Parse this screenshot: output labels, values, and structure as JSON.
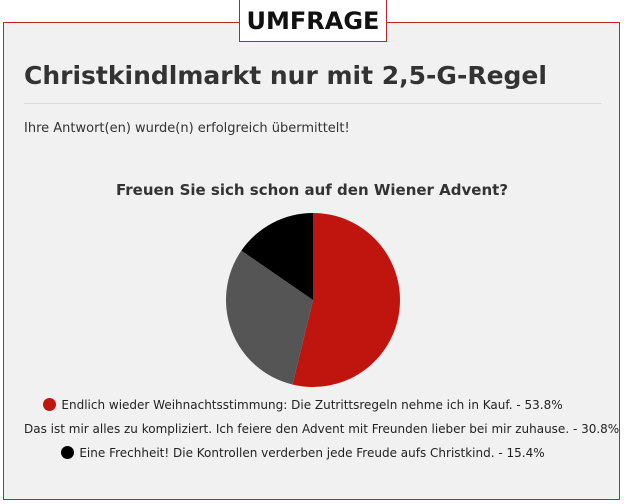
{
  "badge": {
    "label": "UMFRAGE"
  },
  "poll": {
    "title": "Christkindlmarkt nur mit 2,5-G-Regel",
    "confirmation": "Ihre Antwort(en) wurde(n) erfolgreich übermittelt!",
    "question": "Freuen Sie sich schon auf den Wiener Advent?"
  },
  "colors": {
    "accent": "#b8272a",
    "answer_1": "#c0150f",
    "answer_2": "#555555",
    "answer_3": "#000000"
  },
  "chart_data": {
    "type": "pie",
    "title": "Freuen Sie sich schon auf den Wiener Advent?",
    "slices": [
      {
        "label": "Endlich wieder Weihnachtsstimmung: Die Zutrittsregeln nehme ich in Kauf.",
        "value": 53.8,
        "display": "Endlich wieder Weihnachtsstimmung: Die Zutrittsregeln nehme ich in Kauf.  - 53.8%",
        "color": "#c0150f"
      },
      {
        "label": "Das ist mir alles zu kompliziert. Ich feiere den Advent mit Freunden lieber bei mir zuhause.",
        "value": 30.8,
        "display": "Das ist mir alles zu kompliziert. Ich feiere den Advent mit Freunden lieber bei mir zuhause. - 30.8%",
        "color": "#555555"
      },
      {
        "label": "Eine Frechheit! Die Kontrollen verderben jede Freude aufs Christkind.",
        "value": 15.4,
        "display": "Eine Frechheit! Die Kontrollen verderben jede Freude aufs Christkind. - 15.4%",
        "color": "#000000"
      }
    ],
    "legend": "bottom"
  }
}
